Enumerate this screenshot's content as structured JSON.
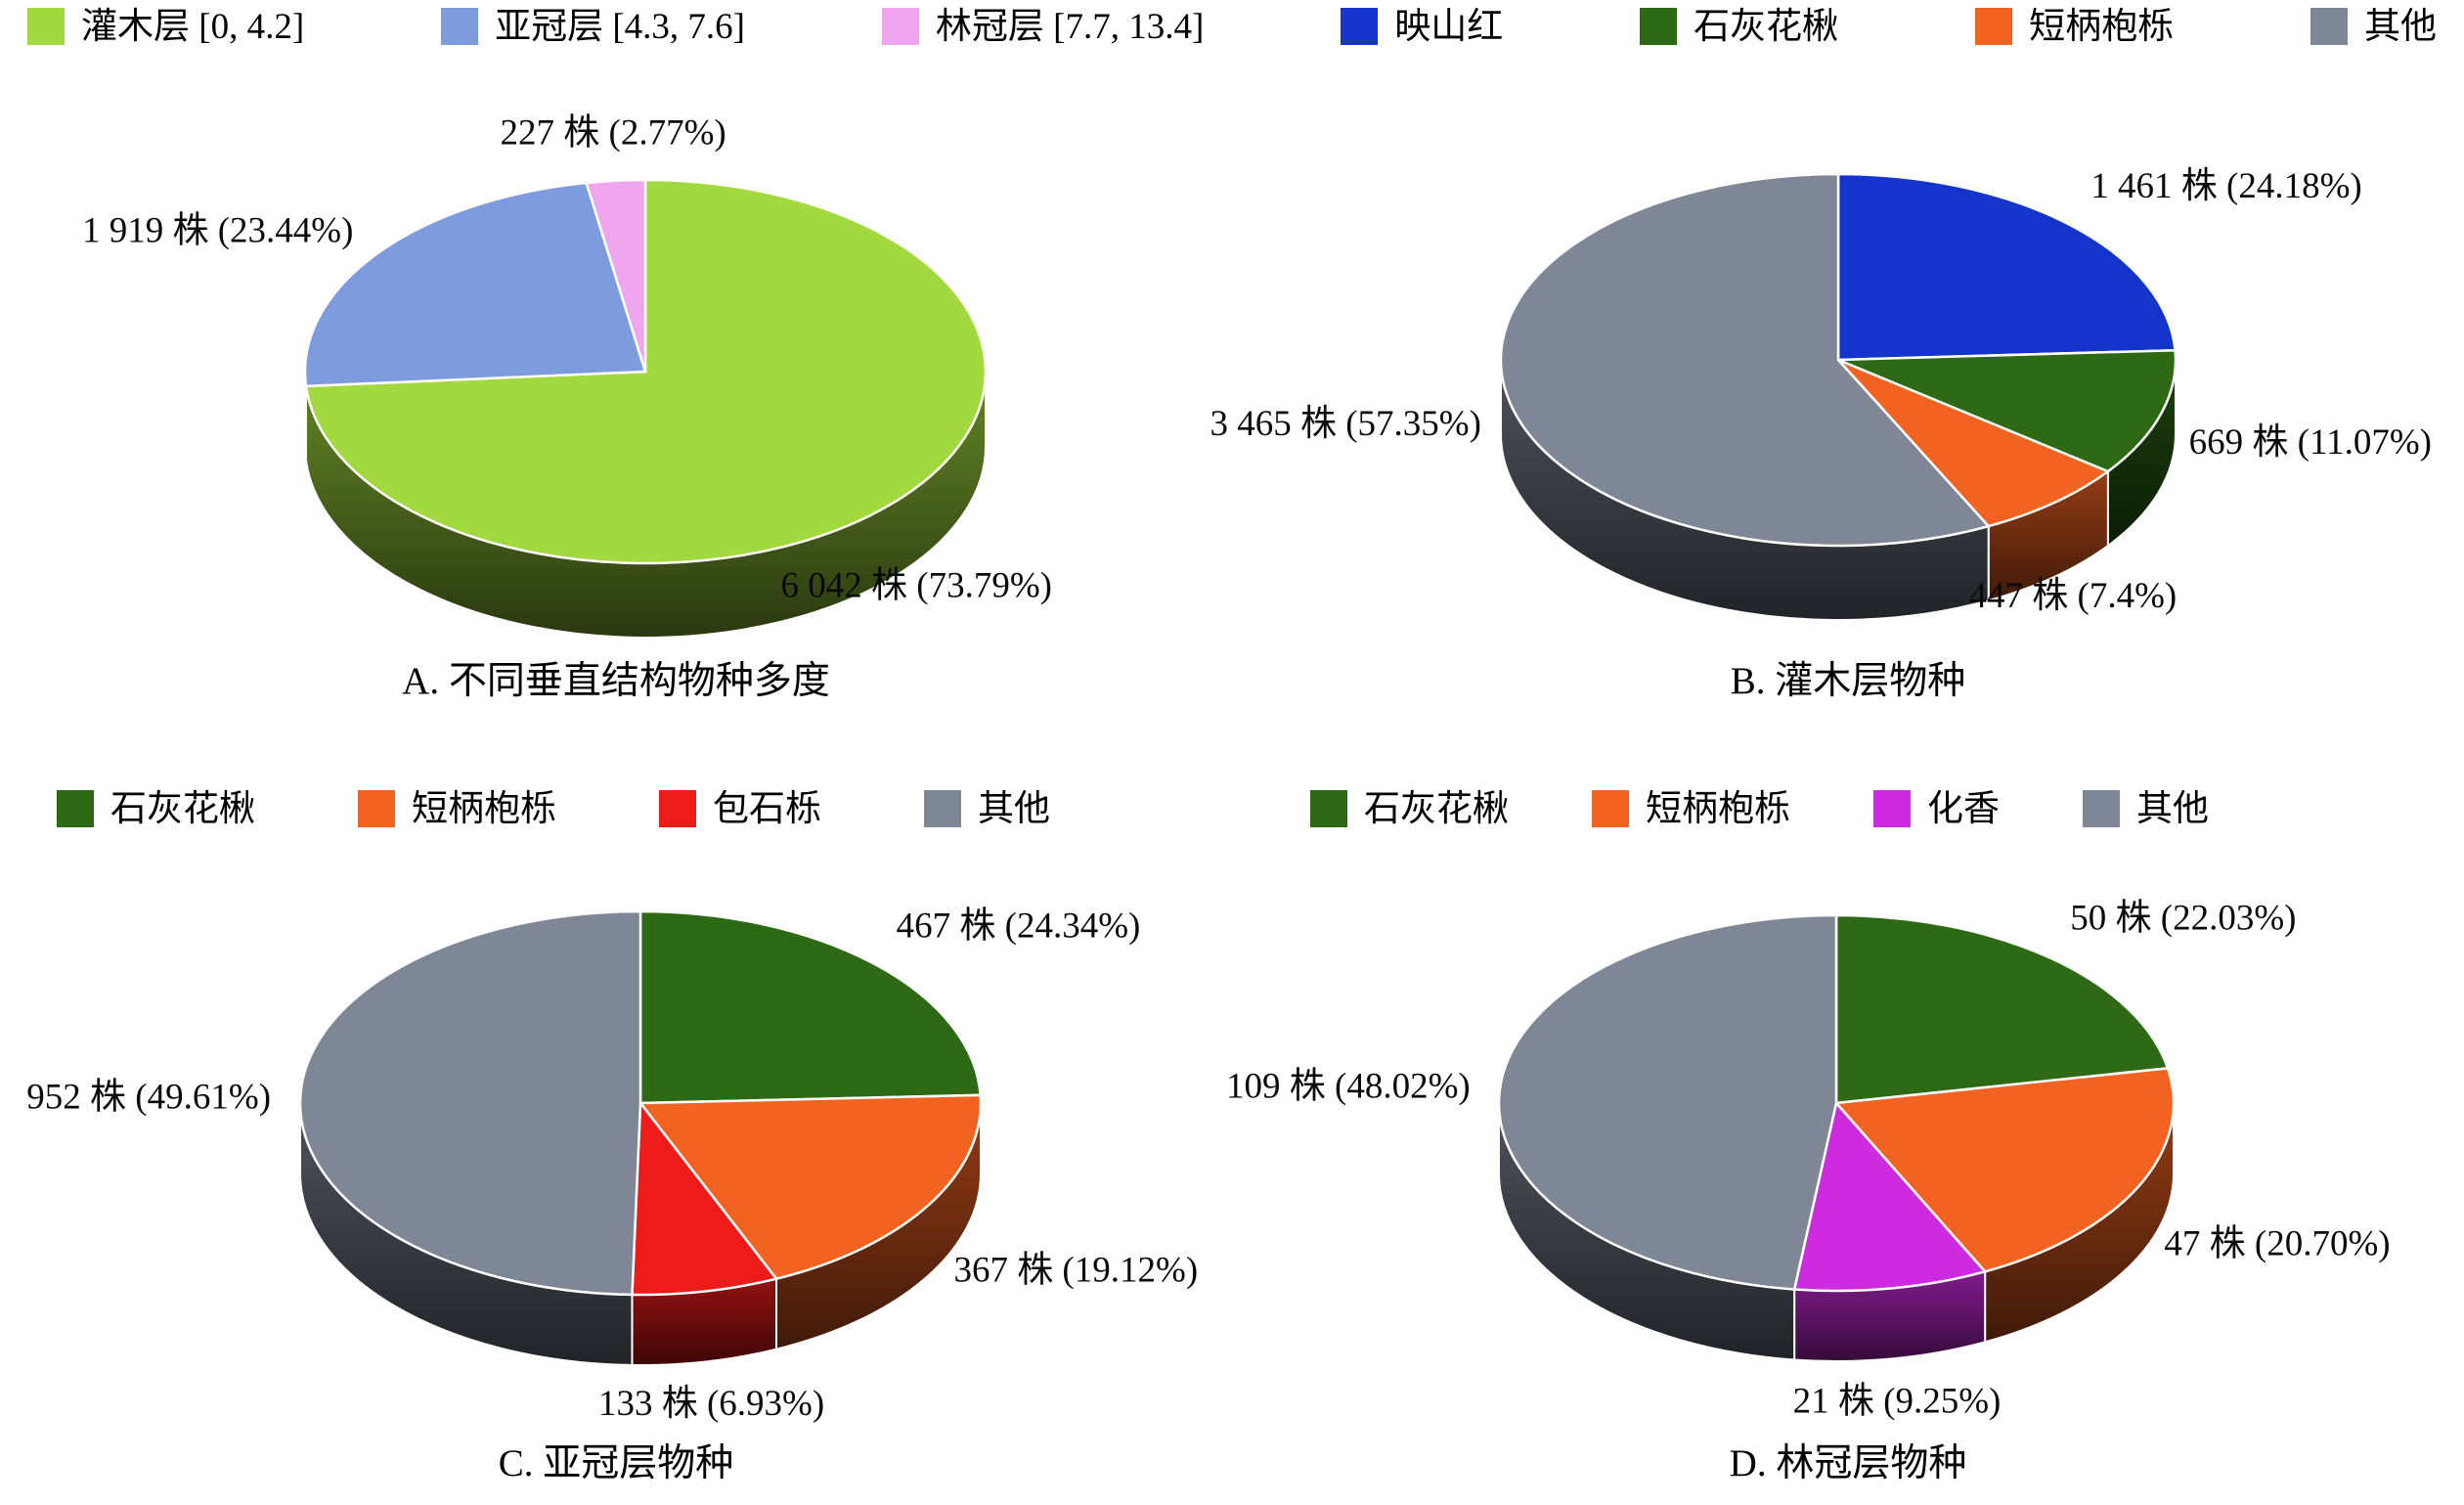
{
  "legends": {
    "top": [
      {
        "label": "灌木层 [0, 4.2]",
        "color": "#a2d93e"
      },
      {
        "label": "亚冠层 [4.3, 7.6]",
        "color": "#7e9cdd"
      },
      {
        "label": "林冠层 [7.7, 13.4]",
        "color": "#f0a6ee"
      },
      {
        "label": "映山红",
        "color": "#1534cb"
      },
      {
        "label": "石灰花楸",
        "color": "#2e6a15"
      },
      {
        "label": "短柄枹栎",
        "color": "#f26321"
      },
      {
        "label": "其他",
        "color": "#7f8695"
      }
    ],
    "subcanopy": [
      {
        "label": "石灰花楸",
        "color": "#2e6a15"
      },
      {
        "label": "短柄枹栎",
        "color": "#f26321"
      },
      {
        "label": "包石栎",
        "color": "#ee1b1b"
      },
      {
        "label": "其他",
        "color": "#7f8695"
      }
    ],
    "canopy": [
      {
        "label": "石灰花楸",
        "color": "#2e6a15"
      },
      {
        "label": "短柄枹栎",
        "color": "#f26321"
      },
      {
        "label": "化香",
        "color": "#ce2be0"
      },
      {
        "label": "其他",
        "color": "#7f8695"
      }
    ]
  },
  "chart_data": [
    {
      "id": "A",
      "type": "pie",
      "style": "3d",
      "unit": "株",
      "title": "A. 不同垂直结构物种多度",
      "slices": [
        {
          "name": "灌木层 [0, 4.2]",
          "value": 6042,
          "percent": 73.79,
          "label": "6 042 株 (73.79%)",
          "color": "#a2d93e"
        },
        {
          "name": "亚冠层 [4.3, 7.6]",
          "value": 1919,
          "percent": 23.44,
          "label": "1 919 株 (23.44%)",
          "color": "#7e9cdd"
        },
        {
          "name": "林冠层 [7.7, 13.4]",
          "value": 227,
          "percent": 2.77,
          "label": "227 株 (2.77%)",
          "color": "#f0a6ee"
        }
      ]
    },
    {
      "id": "B",
      "type": "pie",
      "style": "3d",
      "unit": "株",
      "title": "B. 灌木层物种",
      "slices": [
        {
          "name": "映山红",
          "value": 1461,
          "percent": 24.18,
          "label": "1 461 株 (24.18%)",
          "color": "#1534cb"
        },
        {
          "name": "石灰花楸",
          "value": 669,
          "percent": 11.07,
          "label": "669 株 (11.07%)",
          "color": "#2e6a15"
        },
        {
          "name": "短柄枹栎",
          "value": 447,
          "percent": 7.4,
          "label": "447 株 (7.4%)",
          "color": "#f26321"
        },
        {
          "name": "其他",
          "value": 3465,
          "percent": 57.35,
          "label": "3 465 株 (57.35%)",
          "color": "#7f8695"
        }
      ]
    },
    {
      "id": "C",
      "type": "pie",
      "style": "3d",
      "unit": "株",
      "title": "C. 亚冠层物种",
      "slices": [
        {
          "name": "石灰花楸",
          "value": 467,
          "percent": 24.34,
          "label": "467 株 (24.34%)",
          "color": "#2e6a15"
        },
        {
          "name": "短柄枹栎",
          "value": 367,
          "percent": 19.12,
          "label": "367 株 (19.12%)",
          "color": "#f26321"
        },
        {
          "name": "包石栎",
          "value": 133,
          "percent": 6.93,
          "label": "133 株 (6.93%)",
          "color": "#ee1b1b"
        },
        {
          "name": "其他",
          "value": 952,
          "percent": 49.61,
          "label": "952 株 (49.61%)",
          "color": "#7f8695"
        }
      ]
    },
    {
      "id": "D",
      "type": "pie",
      "style": "3d",
      "unit": "株",
      "title": "D. 林冠层物种",
      "slices": [
        {
          "name": "石灰花楸",
          "value": 50,
          "percent": 22.03,
          "label": "50 株 (22.03%)",
          "color": "#2e6a15"
        },
        {
          "name": "短柄枹栎",
          "value": 47,
          "percent": 20.7,
          "label": "47 株 (20.70%)",
          "color": "#f26321"
        },
        {
          "name": "化香",
          "value": 21,
          "percent": 9.25,
          "label": "21 株 (9.25%)",
          "color": "#ce2be0"
        },
        {
          "name": "其他",
          "value": 109,
          "percent": 48.02,
          "label": "109 株 (48.02%)",
          "color": "#7f8695"
        }
      ]
    }
  ]
}
